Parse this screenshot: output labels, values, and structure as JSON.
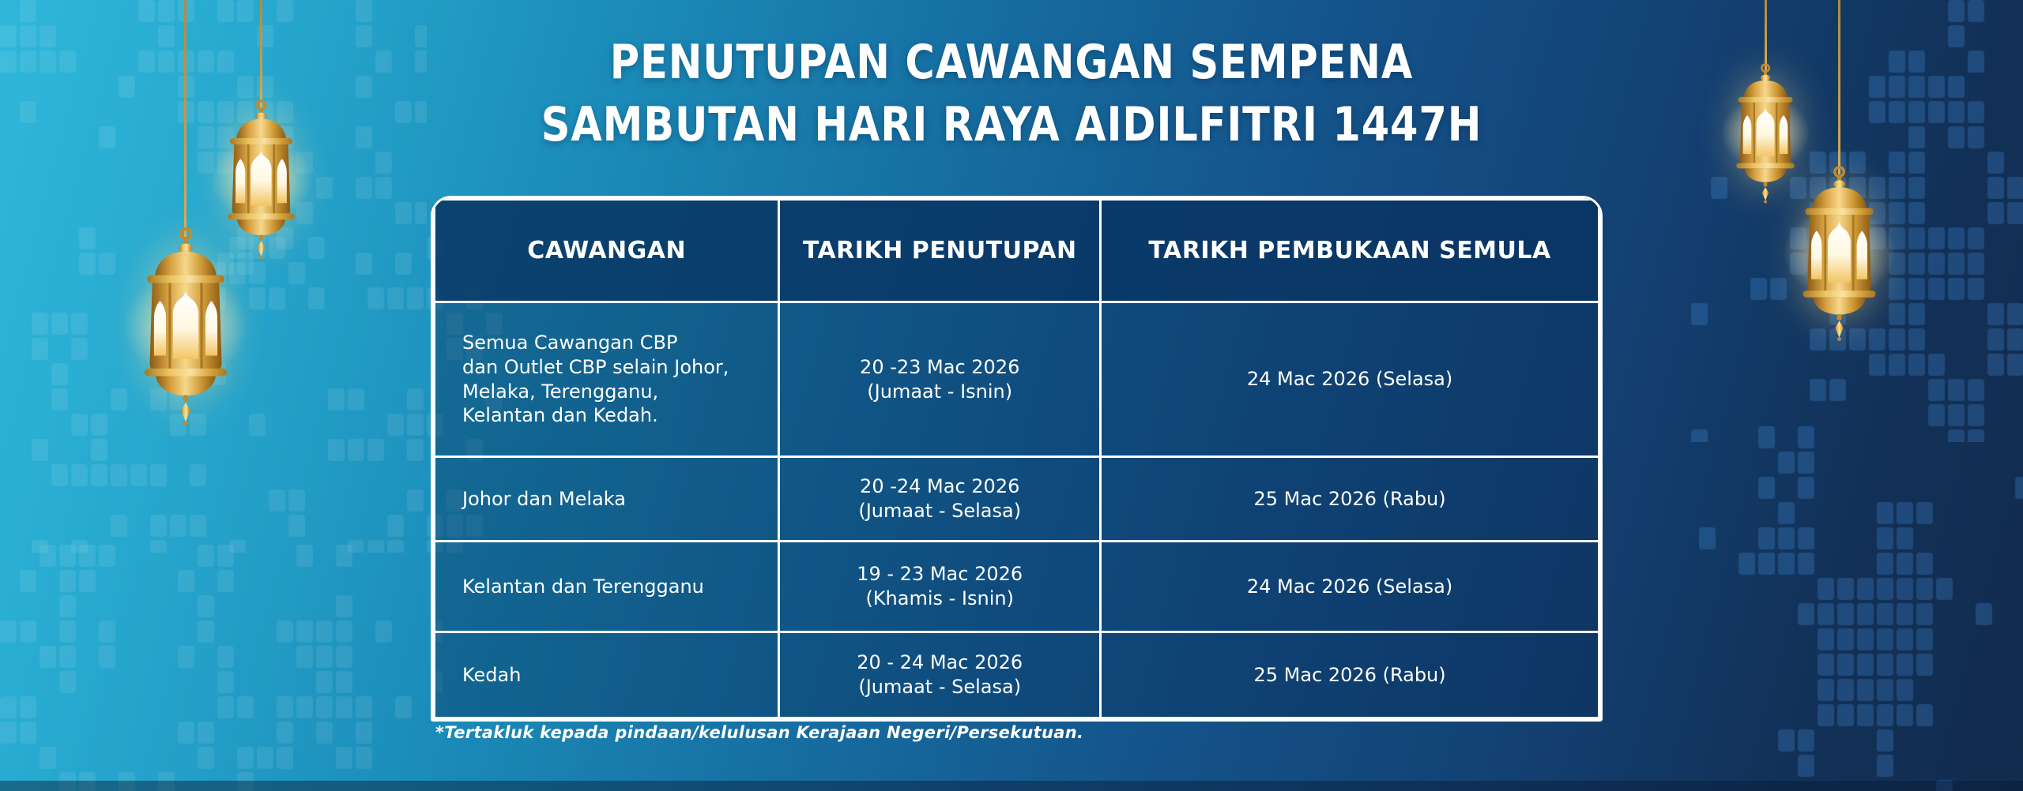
{
  "title": {
    "line1": "PENUTUPAN CAWANGAN SEMPENA",
    "line2": "SAMBUTAN HARI RAYA AIDILFITRI 1447H"
  },
  "table": {
    "headers": [
      "CAWANGAN",
      "TARIKH PENUTUPAN",
      "TARIKH PEMBUKAAN SEMULA"
    ],
    "rows": [
      {
        "cawangan": "Semua Cawangan CBP\ndan Outlet CBP selain Johor,\nMelaka, Terengganu,\nKelantan dan Kedah.",
        "tarikh_penutupan": "20 -23 Mac 2026\n(Jumaat - Isnin)",
        "tarikh_pembukaan": "24 Mac 2026 (Selasa)"
      },
      {
        "cawangan": "Johor dan Melaka",
        "tarikh_penutupan": "20 -24 Mac 2026\n(Jumaat - Selasa)",
        "tarikh_pembukaan": "25 Mac 2026 (Rabu)"
      },
      {
        "cawangan": "Kelantan dan Terengganu",
        "tarikh_penutupan": "19 - 23 Mac 2026\n(Khamis - Isnin)",
        "tarikh_pembukaan": "24 Mac 2026 (Selasa)"
      },
      {
        "cawangan": "Kedah",
        "tarikh_penutupan": "20 - 24 Mac 2026\n(Jumaat - Selasa)",
        "tarikh_pembukaan": "25 Mac 2026 (Rabu)"
      }
    ]
  },
  "footnote": "*Tertakluk kepada pindaan/kelulusan Kerajaan Negeri/Persekutuan.",
  "decor": {
    "lanterns": [
      "lantern-left-small",
      "lantern-left-big",
      "lantern-right-small",
      "lantern-right-big"
    ],
    "colors": {
      "background_left": "#2fb7da",
      "background_mid": "#14548b",
      "background_right": "#122b4e",
      "table_border": "#ffffff",
      "header_fill": "#0c4475",
      "cell_fill": "#135c8f",
      "text": "#ffffff",
      "lantern_gold": "#d6a040",
      "pattern_light": "rgba(255,255,255,0.09)",
      "pattern_blue": "rgba(70,145,220,0.28)"
    }
  }
}
